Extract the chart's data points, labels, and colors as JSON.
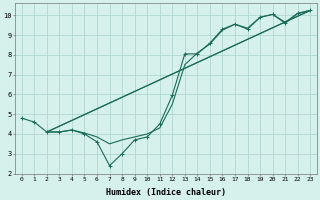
{
  "xlabel": "Humidex (Indice chaleur)",
  "xlim": [
    -0.5,
    23.5
  ],
  "ylim": [
    2,
    10.6
  ],
  "xticks": [
    0,
    1,
    2,
    3,
    4,
    5,
    6,
    7,
    8,
    9,
    10,
    11,
    12,
    13,
    14,
    15,
    16,
    17,
    18,
    19,
    20,
    21,
    22,
    23
  ],
  "yticks": [
    2,
    3,
    4,
    5,
    6,
    7,
    8,
    9,
    10
  ],
  "bg_color": "#d6f0eb",
  "line_color": "#1a6b5a",
  "grid_color": "#b0d8d0",
  "line1_x": [
    0,
    1,
    2,
    3,
    4,
    5,
    6,
    7,
    8,
    9,
    10,
    11,
    12,
    13,
    14,
    15,
    16,
    17,
    18,
    19,
    20,
    21,
    22,
    23
  ],
  "line1_y": [
    4.8,
    4.6,
    4.1,
    4.1,
    4.2,
    4.0,
    3.6,
    2.4,
    3.0,
    3.7,
    3.85,
    4.5,
    5.95,
    8.05,
    8.05,
    8.6,
    9.3,
    9.55,
    9.3,
    9.9,
    10.05,
    9.6,
    10.1,
    10.25
  ],
  "line2_x": [
    2,
    3,
    4,
    5,
    6,
    7,
    8,
    9,
    10,
    11,
    12,
    13,
    14,
    15,
    16,
    17,
    18,
    19,
    20,
    21,
    22,
    23
  ],
  "line2_y": [
    4.1,
    4.1,
    4.2,
    4.05,
    3.85,
    3.5,
    3.7,
    3.85,
    4.0,
    4.3,
    5.5,
    7.5,
    8.1,
    8.55,
    9.25,
    9.55,
    9.35,
    9.9,
    10.05,
    9.65,
    10.1,
    10.25
  ],
  "line3_x": [
    2,
    23
  ],
  "line3_y": [
    4.1,
    10.25
  ],
  "line4_x": [
    2,
    23
  ],
  "line4_y": [
    4.1,
    10.25
  ]
}
